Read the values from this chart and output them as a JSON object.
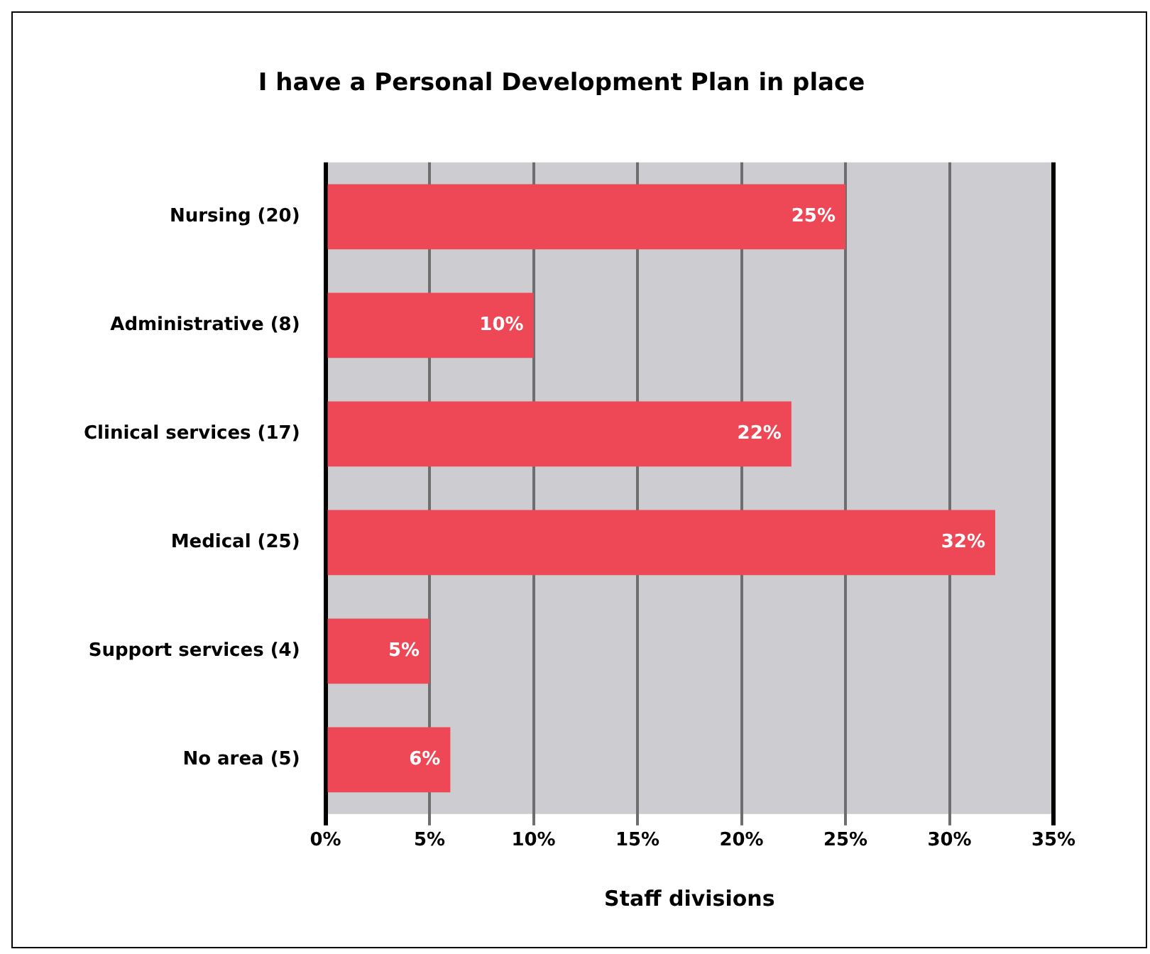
{
  "chart_data": {
    "type": "bar",
    "orientation": "horizontal",
    "title": "I have a Personal Development Plan in place",
    "xlabel": "Staff divisions",
    "categories": [
      "Nursing (20)",
      "Administrative (8)",
      "Clinical services (17)",
      "Medical (25)",
      "Support services (4)",
      "No area (5)"
    ],
    "values": [
      25,
      10,
      22.4,
      32.2,
      5,
      6
    ],
    "value_labels": [
      "25%",
      "10%",
      "22%",
      "32%",
      "5%",
      "6%"
    ],
    "color": "#ee4755",
    "xlim": [
      0,
      35
    ],
    "xticks": [
      {
        "value": 0,
        "label": "0%"
      },
      {
        "value": 5,
        "label": "5%"
      },
      {
        "value": 10,
        "label": "10%"
      },
      {
        "value": 15,
        "label": "15%"
      },
      {
        "value": 20,
        "label": "20%"
      },
      {
        "value": 25,
        "label": "25%"
      },
      {
        "value": 30,
        "label": "30%"
      },
      {
        "value": 35,
        "label": "35%"
      }
    ],
    "grid": "x",
    "legend": false
  }
}
